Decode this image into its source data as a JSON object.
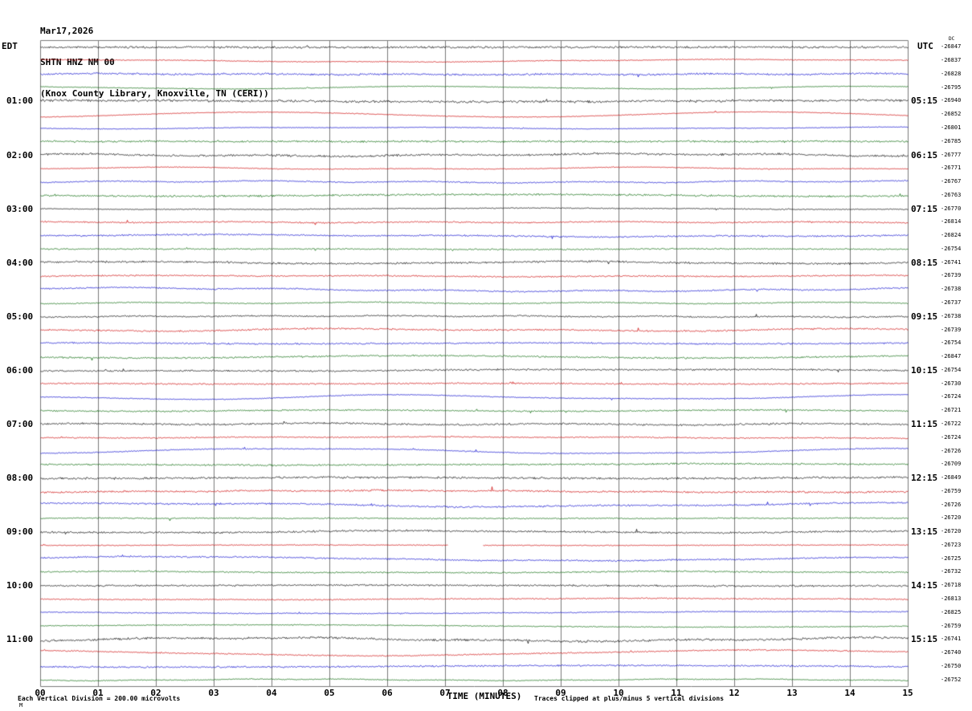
{
  "header": {
    "date": "Mar17,2026",
    "station": "SHTN HNZ NM 00",
    "location": "(Knox County Library, Knoxville, TN (CERI))"
  },
  "left_axis": {
    "label": "EDT",
    "times": [
      "01:00",
      "02:00",
      "03:00",
      "04:00",
      "05:00",
      "06:00",
      "07:00",
      "08:00",
      "09:00",
      "10:00",
      "11:00"
    ]
  },
  "right_axis": {
    "label": "UTC",
    "dc_header": "DC",
    "times": [
      "05:15",
      "06:15",
      "07:15",
      "08:15",
      "09:15",
      "10:15",
      "11:15",
      "12:15",
      "13:15",
      "14:15",
      "15:15"
    ]
  },
  "x_axis": {
    "title": "TIME (MINUTES)",
    "ticks": [
      "00",
      "01",
      "02",
      "03",
      "04",
      "05",
      "06",
      "07",
      "08",
      "09",
      "10",
      "11",
      "12",
      "13",
      "14",
      "15"
    ]
  },
  "footer": {
    "left": "Each Vertical Division =  200.00 microvolts",
    "right": "Traces clipped at plus/minus 5 vertical divisions",
    "corner_mark": "M"
  },
  "colors": {
    "background": "#ffffff",
    "grid": "#7a7a7a",
    "text": "#000000"
  },
  "chart_data": {
    "type": "line",
    "title": "Helicorder seismogram SHTN HNZ NM 00, Mar17,2026",
    "xlabel": "TIME (MINUTES)",
    "x_range_minutes": [
      0,
      15
    ],
    "rows": 48,
    "traces_per_hour": 4,
    "row_color_cycle": [
      "#000000",
      "#cc0000",
      "#0000cc",
      "#006600"
    ],
    "vertical_division_microvolts": 200.0,
    "clip_divisions": 5,
    "gap": {
      "row": 37,
      "start_minute": 7.05,
      "end_minute": 7.65
    },
    "dc_offsets": [
      "-26847",
      "-26837",
      "-26828",
      "-26795",
      "-26940",
      "-26852",
      "-26801",
      "-26785",
      "-26777",
      "-26771",
      "-26767",
      "-26763",
      "-26770",
      "-26814",
      "-26824",
      "-26754",
      "-26741",
      "-26739",
      "-26738",
      "-26737",
      "-26738",
      "-26739",
      "-26754",
      "-26847",
      "-26754",
      "-26730",
      "-26724",
      "-26721",
      "-26722",
      "-26724",
      "-26726",
      "-26709",
      "-26849",
      "-26759",
      "-26726",
      "-26720",
      "-26720",
      "-26723",
      "-26725",
      "-26732",
      "-26718",
      "-26813",
      "-26825",
      "-26759",
      "-26741",
      "-26740",
      "-26750",
      "-26752"
    ]
  }
}
